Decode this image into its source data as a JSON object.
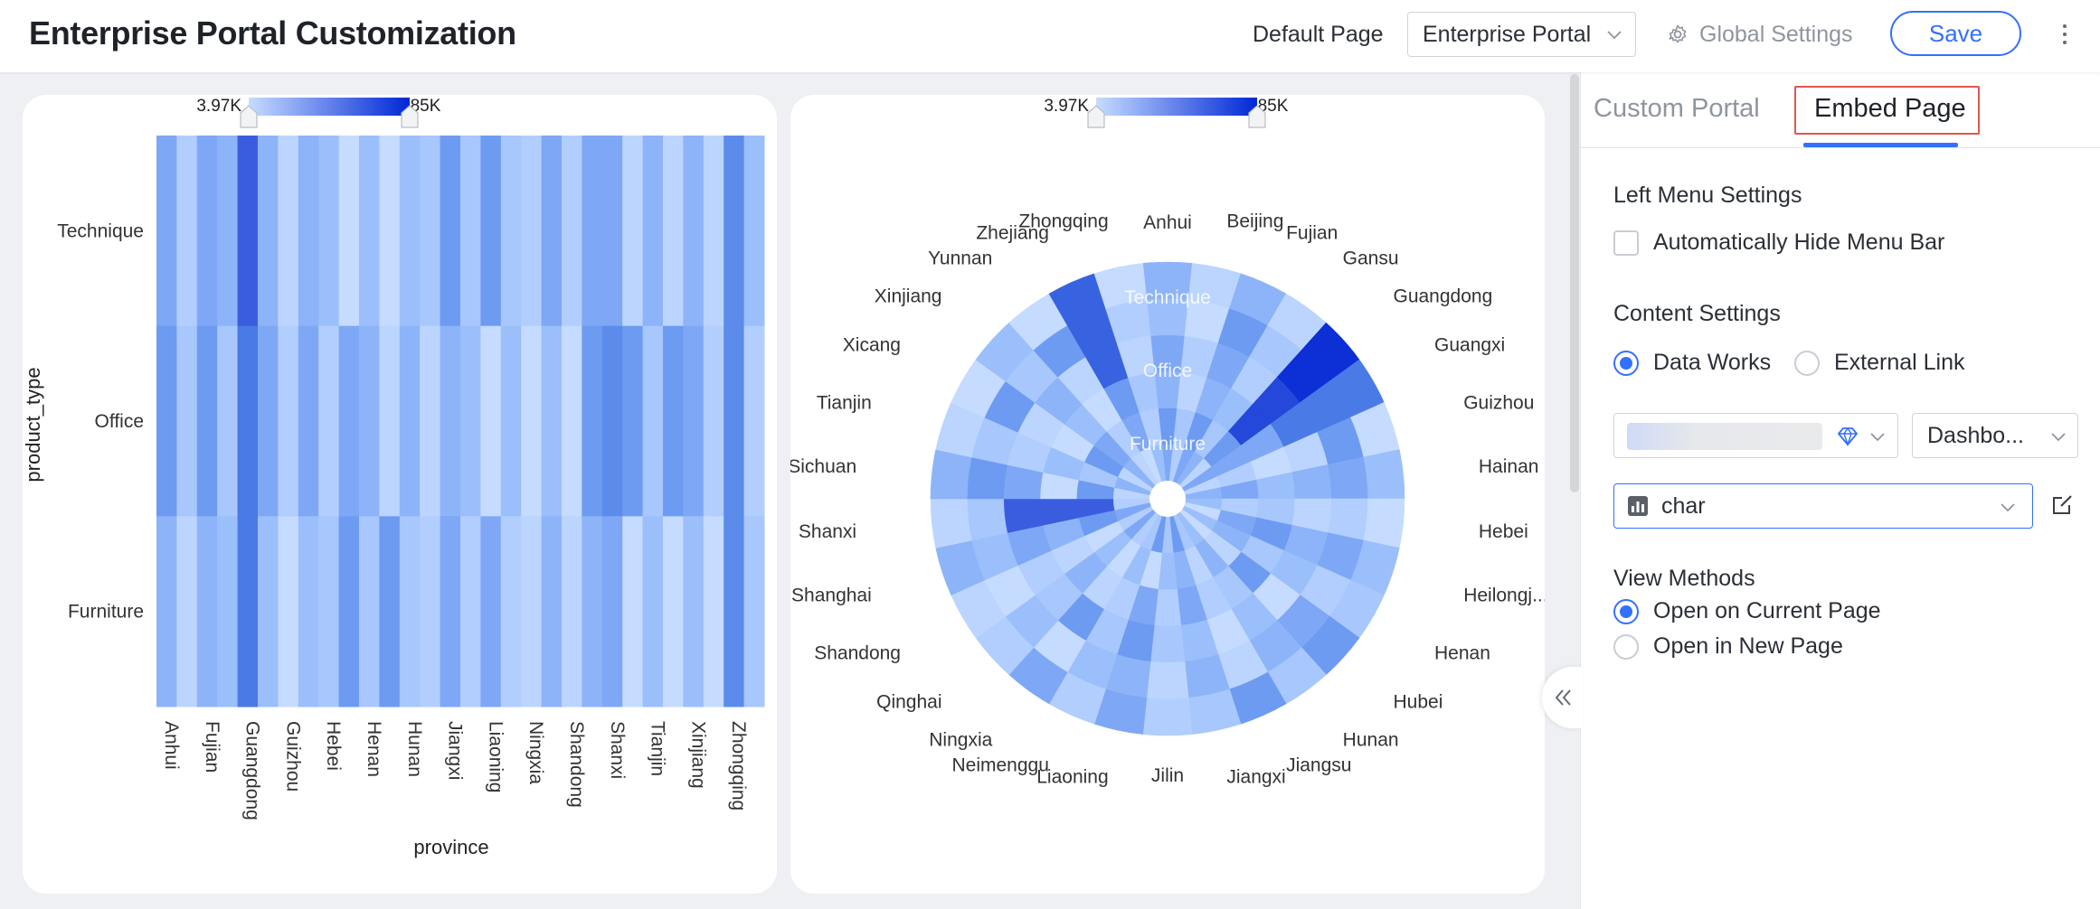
{
  "header": {
    "title": "Enterprise Portal Customization",
    "default_page_label": "Default Page",
    "default_page_value": "Enterprise Portal",
    "global_settings_label": "Global Settings",
    "save_label": "Save",
    "icons": {
      "settings": "gear-icon",
      "more": "more-vertical-icon",
      "dropdown": "chevron-down-icon"
    }
  },
  "panel": {
    "tabs": [
      "Custom Portal",
      "Embed Page"
    ],
    "active_tab": "Embed Page",
    "left_menu_title": "Left Menu Settings",
    "auto_hide_label": "Automatically Hide Menu Bar",
    "auto_hide_checked": false,
    "content_title": "Content Settings",
    "content_options": [
      "Data Works",
      "External Link"
    ],
    "content_selected": "Data Works",
    "dashboard_select": "Dashbo...",
    "chart_select": "char",
    "view_title": "View Methods",
    "view_options": [
      "Open on Current Page",
      "Open in New Page"
    ],
    "view_selected": "Open on Current Page"
  },
  "colors": {
    "accent": "#3370ff",
    "highlight": "#e0574e"
  },
  "chart_data": [
    {
      "type": "heatmap",
      "title": "",
      "xlabel": "province",
      "ylabel": "product_type",
      "x": [
        "Anhui",
        "Fujian",
        "Guangdong",
        "Guizhou",
        "Hebei",
        "Henan",
        "Hunan",
        "Jiangxi",
        "Liaoning",
        "Ningxia",
        "Shandong",
        "Shanxi",
        "Tianjin",
        "Xinjiang",
        "Zhongqing"
      ],
      "y": [
        "Technique",
        "Office",
        "Furniture"
      ],
      "range_labels": [
        "3.97K",
        "885K"
      ],
      "range": [
        3970,
        885000
      ],
      "color_scale": [
        "#c6dcff",
        "#0027d6"
      ]
    },
    {
      "type": "heatmap",
      "subtype": "polar",
      "title": "",
      "angle_categories": [
        "Anhui",
        "Beijing",
        "Fujian",
        "Gansu",
        "Guangdong",
        "Guangxi",
        "Guizhou",
        "Hainan",
        "Hebei",
        "Heilongj...",
        "Henan",
        "Hubei",
        "Hunan",
        "Jiangsu",
        "Jiangxi",
        "Jilin",
        "Liaoning",
        "Neimenggu",
        "Ningxia",
        "Qinghai",
        "Shandong",
        "Shanghai",
        "Shanxi",
        "Sichuan",
        "Tianjin",
        "Xicang",
        "Xinjiang",
        "Yunnan",
        "Zhejiang",
        "Zhongqing"
      ],
      "radius_categories": [
        "Technique",
        "Office",
        "Furniture"
      ],
      "range_labels": [
        "3.97K",
        "885K"
      ],
      "range": [
        3970,
        885000
      ],
      "color_scale": [
        "#c6dcff",
        "#0027d6"
      ]
    }
  ]
}
